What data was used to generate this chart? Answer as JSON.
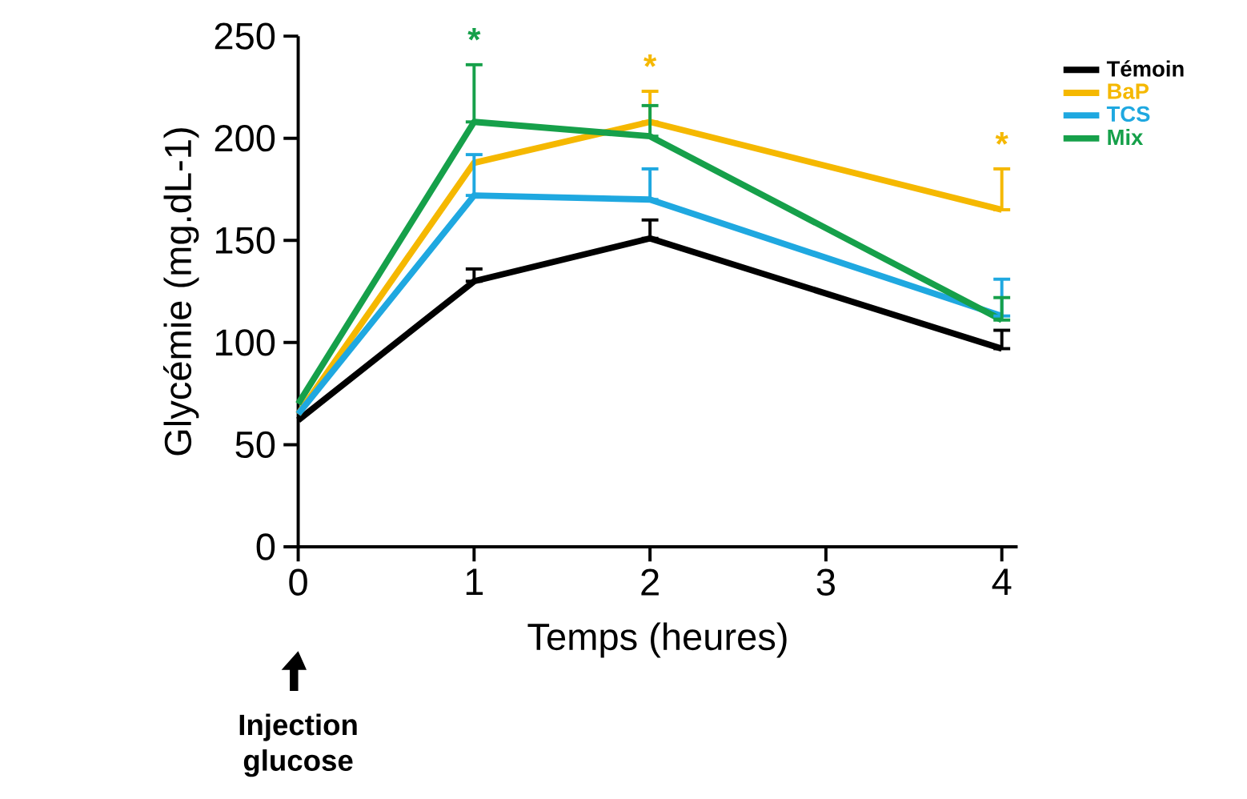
{
  "chart_data": {
    "type": "line",
    "xlabel": "Temps (heures)",
    "ylabel": "Glycémie (mg.dL-1)",
    "x": [
      0,
      1,
      2,
      4
    ],
    "series": [
      {
        "name": "Témoin",
        "color": "#000000",
        "values": [
          62,
          130,
          151,
          97
        ],
        "errors": [
          null,
          [
            130,
            136
          ],
          [
            151,
            160
          ],
          [
            97,
            106
          ]
        ]
      },
      {
        "name": "BaP",
        "color": "#f5b800",
        "values": [
          65,
          188,
          208,
          165
        ],
        "errors": [
          null,
          null,
          [
            208,
            223
          ],
          [
            165,
            185
          ]
        ]
      },
      {
        "name": "TCS",
        "color": "#1fa8e0",
        "values": [
          65,
          172,
          170,
          113
        ],
        "errors": [
          null,
          [
            172,
            192
          ],
          [
            170,
            185
          ],
          [
            113,
            131
          ]
        ]
      },
      {
        "name": "Mix",
        "color": "#16a04a",
        "values": [
          70,
          208,
          201,
          111
        ],
        "errors": [
          null,
          [
            208,
            236
          ],
          [
            201,
            216
          ],
          [
            111,
            122
          ]
        ]
      }
    ],
    "xlim": [
      0,
      4.09
    ],
    "ylim": [
      0,
      250
    ],
    "xticks": [
      0,
      1,
      2,
      3,
      4
    ],
    "yticks": [
      0,
      50,
      100,
      150,
      200,
      250
    ],
    "annotations": [
      {
        "text": "*",
        "x": 1,
        "y": 236
      },
      {
        "text": "*",
        "x": 2,
        "y": 223
      },
      {
        "text": "*",
        "x": 4,
        "y": 185
      },
      "Injection glucose"
    ],
    "legend": "top right",
    "marker": "none",
    "line_style": "solid"
  }
}
